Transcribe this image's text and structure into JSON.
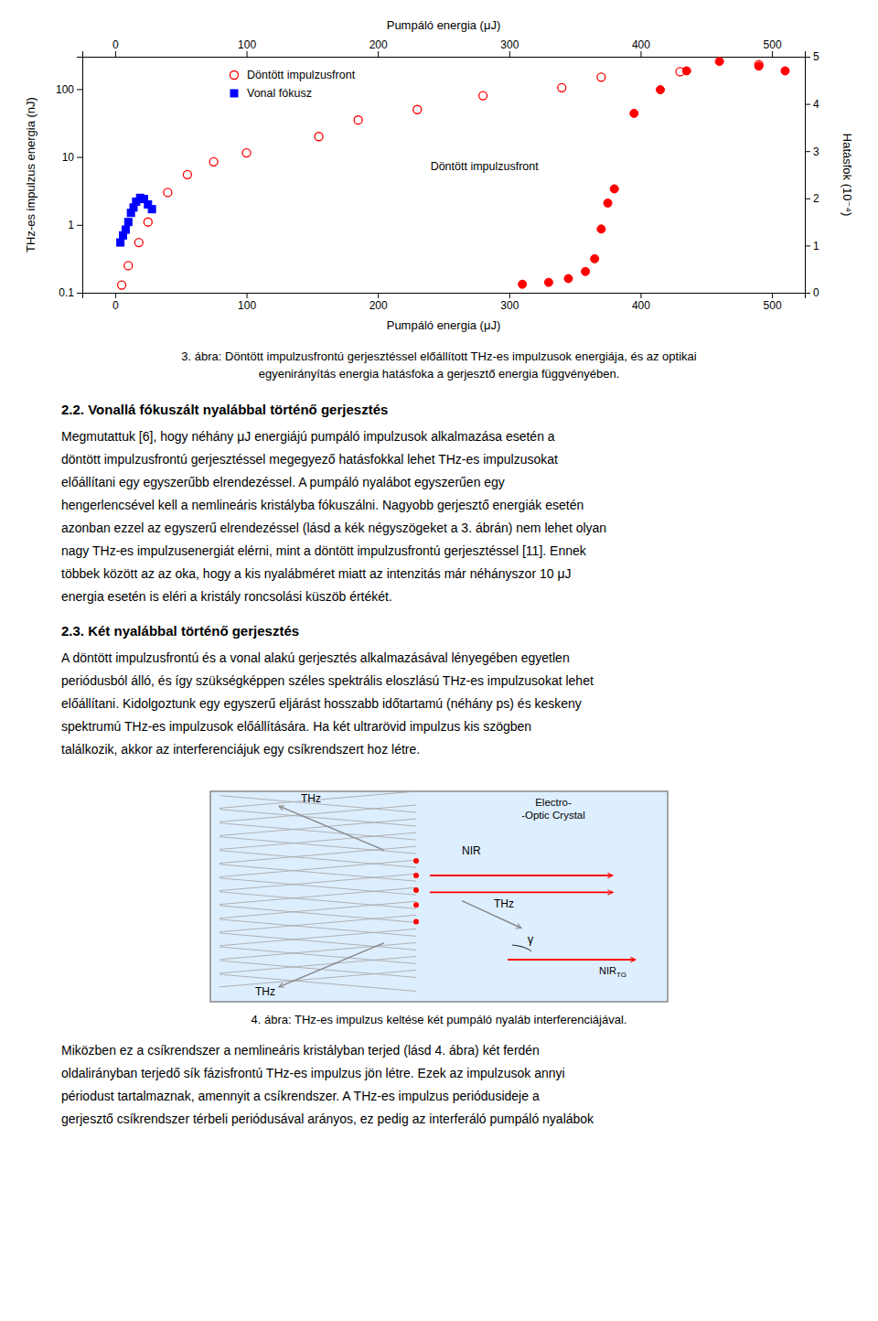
{
  "chart_data": {
    "type": "scatter",
    "xlabel": "Pumpáló energia (μJ)",
    "x2label": "Pumpáló energia (μJ)",
    "ylabel": "THz-es impulzus energia (nJ)",
    "y2label": "Hatásfok (10⁻⁴)",
    "xlim": [
      -25,
      525
    ],
    "xticks": [
      0,
      100,
      200,
      300,
      400,
      500
    ],
    "x2lim": [
      -25,
      525
    ],
    "x2ticks": [
      0,
      100,
      200,
      300,
      400,
      500
    ],
    "ylim": [
      0.1,
      300
    ],
    "yticks": [
      0.1,
      1,
      10,
      100
    ],
    "log": "y",
    "y2lim": [
      0,
      5
    ],
    "y2ticks": [
      0,
      1,
      2,
      3,
      4,
      5
    ],
    "grid": false,
    "legend": "upper left",
    "series": [
      {
        "name": "Döntött impulzusfront",
        "color": "red",
        "marker": "circle-open",
        "x": [
          5,
          10,
          18,
          25,
          40,
          55,
          75,
          100,
          155,
          185,
          230,
          280,
          340,
          370,
          430,
          490
        ],
        "values": [
          0.13,
          0.25,
          0.55,
          1.1,
          3.0,
          5.5,
          8.5,
          11.5,
          20,
          35,
          50,
          80,
          105,
          150,
          180,
          230
        ]
      },
      {
        "name": "Vonal fókusz",
        "color": "blue",
        "marker": "square",
        "x": [
          4,
          6,
          8,
          10,
          12,
          14,
          16,
          19,
          22,
          25,
          28
        ],
        "values": [
          0.55,
          0.7,
          0.85,
          1.1,
          1.5,
          1.8,
          2.2,
          2.5,
          2.4,
          2.0,
          1.7
        ]
      },
      {
        "color": "red",
        "marker": "circle",
        "axis": "y2",
        "x": [
          310,
          330,
          345,
          358,
          365,
          370,
          375,
          380,
          395,
          415,
          435,
          460,
          490,
          510
        ],
        "values": [
          0.18,
          0.22,
          0.3,
          0.45,
          0.72,
          1.35,
          1.9,
          2.2,
          3.8,
          4.3,
          4.7,
          4.9,
          4.8,
          4.7
        ]
      }
    ],
    "annotations": [
      {
        "text": "Döntött impulzusfront",
        "x": 240,
        "y": 2.6,
        "axis": "y2"
      }
    ]
  },
  "caption3": [
    "3. ábra: Döntött impulzusfrontú gerjesztéssel előállított THz-es impulzusok energiája, és az optikai",
    "egyenirányítás energia hatásfoka a gerjesztő energia függvényében."
  ],
  "sections": [
    {
      "title": "2.2. Vonallá fókuszált nyalábbal történő gerjesztés",
      "lines": [
        "Megmutattuk [6], hogy néhány μJ energiájú pumpáló impulzusok alkalmazása esetén a",
        "döntött impulzusfrontú gerjesztéssel megegyező hatásfokkal lehet THz-es impulzusokat",
        "előállítani egy egyszerűbb elrendezéssel. A pumpáló nyalábot egyszerűen egy",
        "hengerlencsével kell a nemlineáris kristályba fókuszálni. Nagyobb gerjesztő energiák esetén",
        "azonban ezzel az egyszerű elrendezéssel (lásd a kék négyszögeket a 3. ábrán) nem lehet olyan",
        "nagy THz-es impulzusenergiát elérni, mint a döntött impulzusfrontú gerjesztéssel [11]. Ennek",
        "többek között az az oka, hogy a kis nyalábméret miatt az intenzitás már néhányszor 10 μJ",
        "energia esetén is eléri a kristály roncsolási küszöb értékét."
      ]
    },
    {
      "title": "2.3. Két nyalábbal történő gerjesztés",
      "lines": [
        "A döntött impulzusfrontú és a vonal alakú gerjesztés alkalmazásával lényegében egyetlen",
        "periódusból álló, és így szükségképpen széles spektrális eloszlású THz-es impulzusokat lehet",
        "előállítani. Kidolgoztunk egy egyszerű eljárást hosszabb időtartamú (néhány ps) és keskeny",
        "spektrumú THz-es impulzusok előállítására. Ha két ultrarövid impulzus kis szögben",
        "találkozik, akkor az interferenciájuk egy csíkrendszert hoz létre."
      ]
    }
  ],
  "diagram": {
    "labels": [
      "NIR",
      "THz",
      "THz",
      "Electro-",
      "-Optic Crystal",
      "THz",
      "NIR",
      "TG",
      "γ"
    ]
  },
  "caption4": "4. ábra: THz-es impulzus keltése két pumpáló nyaláb interferenciájával.",
  "final_lines": [
    "Miközben ez a csíkrendszer a nemlineáris kristályban terjed (lásd 4. ábra) két ferdén",
    "oldalirányban terjedő sík fázisfrontú THz-es impulzus jön létre. Ezek az impulzusok annyi",
    "périodust tartalmaznak, amennyit a csíkrendszer. A THz-es impulzus periódusideje a",
    "gerjesztő csíkrendszer térbeli periódusával arányos, ez pedig az interferáló pumpáló nyalábok"
  ]
}
